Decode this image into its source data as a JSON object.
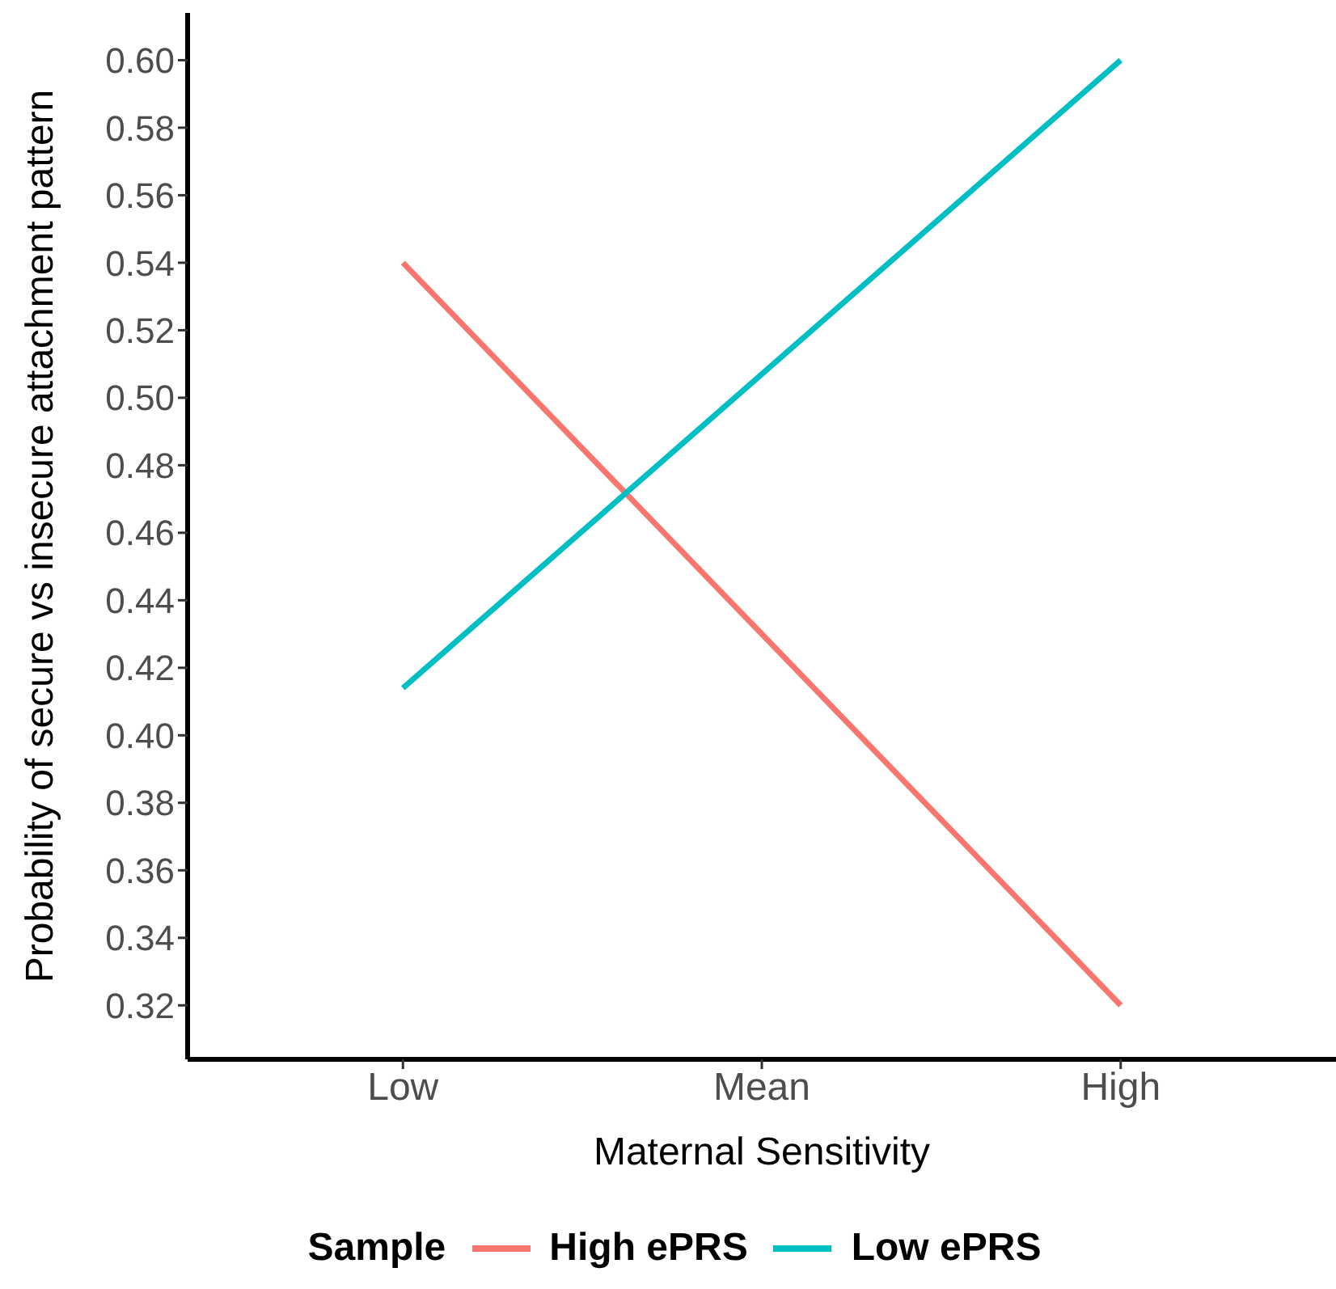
{
  "chart_data": {
    "type": "line",
    "xlabel": "Maternal Sensitivity",
    "ylabel": "Probability of secure vs insecure attachment pattern",
    "legend_title": "Sample",
    "categories": [
      "Low",
      "Mean",
      "High"
    ],
    "series": [
      {
        "name": "High ePRS",
        "color": "#f8766d",
        "values": [
          0.54,
          0.43,
          0.32
        ]
      },
      {
        "name": "Low ePRS",
        "color": "#00bfc4",
        "values": [
          0.414,
          0.507,
          0.6
        ]
      }
    ],
    "ylim": [
      0.304,
      0.614
    ],
    "yticks": [
      {
        "value": 0.32,
        "label": "0.32"
      },
      {
        "value": 0.34,
        "label": "0.34"
      },
      {
        "value": 0.36,
        "label": "0.36"
      },
      {
        "value": 0.38,
        "label": "0.38"
      },
      {
        "value": 0.4,
        "label": "0.40"
      },
      {
        "value": 0.42,
        "label": "0.42"
      },
      {
        "value": 0.44,
        "label": "0.44"
      },
      {
        "value": 0.46,
        "label": "0.46"
      },
      {
        "value": 0.48,
        "label": "0.48"
      },
      {
        "value": 0.5,
        "label": "0.50"
      },
      {
        "value": 0.52,
        "label": "0.52"
      },
      {
        "value": 0.54,
        "label": "0.54"
      },
      {
        "value": 0.56,
        "label": "0.56"
      },
      {
        "value": 0.58,
        "label": "0.58"
      },
      {
        "value": 0.6,
        "label": "0.60"
      }
    ],
    "grid": false,
    "legend": "bottom",
    "marker": "none",
    "line_style": "solid"
  }
}
